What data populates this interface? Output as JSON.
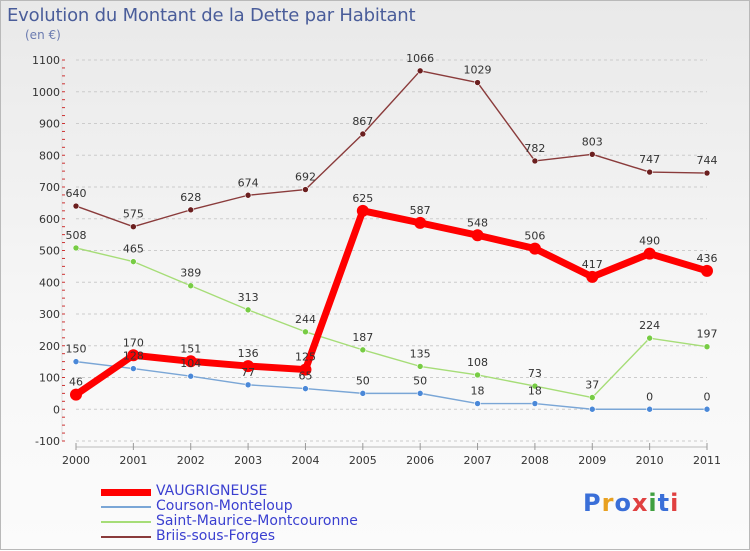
{
  "page": {
    "title": "Evolution du Montant de la Dette par Habitant",
    "subtitle": "(en €)",
    "logo_text": "Proxiti"
  },
  "colors": {
    "grid": "#cccccc",
    "axis_text": "#333333",
    "logo": [
      "#3a6fd8",
      "#e8a020",
      "#3a6fd8",
      "#e04040",
      "#40a040",
      "#3a6fd8",
      "#e04040"
    ]
  },
  "chart_data": {
    "type": "line",
    "title": "Evolution du Montant de la Dette par Habitant",
    "subtitle": "(en €)",
    "xlabel": "",
    "ylabel": "",
    "x": [
      "2000",
      "2001",
      "2002",
      "2003",
      "2004",
      "2005",
      "2006",
      "2007",
      "2008",
      "2009",
      "2010",
      "2011"
    ],
    "ylim": [
      -100,
      1100
    ],
    "yticks": [
      -100,
      0,
      100,
      200,
      300,
      400,
      500,
      600,
      700,
      800,
      900,
      1000,
      1100
    ],
    "grid": true,
    "grid_style": "dashed horizontal",
    "legend_position": "bottom-left",
    "series": [
      {
        "name": "VAUGRIGNEUSE",
        "values": [
          46,
          170,
          151,
          136,
          125,
          625,
          587,
          548,
          506,
          417,
          490,
          436
        ],
        "color": "#ff0000",
        "marker_color": "#ff0000",
        "weight": "heavy"
      },
      {
        "name": "Courson-Monteloup",
        "values": [
          150,
          128,
          104,
          77,
          65,
          50,
          50,
          18,
          18,
          0,
          0,
          0
        ],
        "labels": [
          "150",
          "128",
          "104",
          "77",
          "65",
          "50",
          "50",
          "18",
          "18",
          "",
          "0",
          "0"
        ],
        "color": "#7aa6d6",
        "marker_color": "#4a88d8",
        "weight": "thin"
      },
      {
        "name": "Saint-Maurice-Montcouronne",
        "values": [
          508,
          465,
          389,
          313,
          244,
          187,
          135,
          108,
          73,
          37,
          224,
          197
        ],
        "color": "#a6dd77",
        "marker_color": "#77cc44",
        "weight": "thin"
      },
      {
        "name": "Briis-sous-Forges",
        "values": [
          640,
          575,
          628,
          674,
          692,
          867,
          1066,
          1029,
          782,
          803,
          747,
          744
        ],
        "color": "#8a3b3b",
        "marker_color": "#6b1f1f",
        "weight": "thin"
      }
    ]
  }
}
